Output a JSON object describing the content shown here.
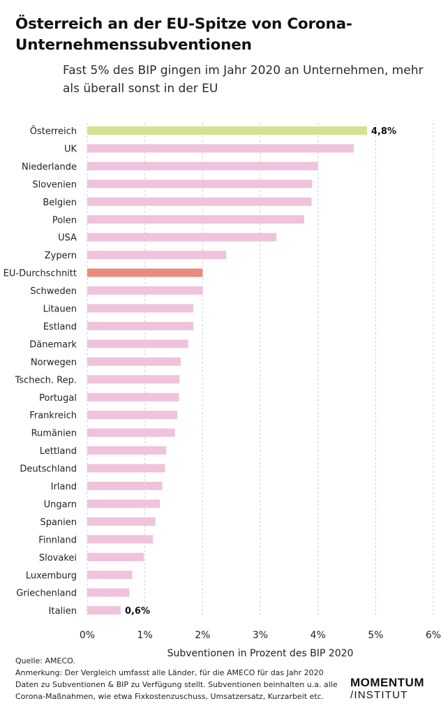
{
  "title": "Österreich an der EU-Spitze von Corona-Unternehmenssubventionen",
  "subtitle": "Fast 5% des BIP gingen im Jahr 2020 an Unternehmen, mehr als überall sonst in der EU",
  "source": "Quelle: AMECO.",
  "note": "Anmerkung: Der Vergleich umfasst alle Länder, für die AMECO für das Jahr 2020 Daten zu Subventionen & BIP zu Verfügung stellt. Subventionen beinhalten u.a. alle Corona-Maßnahmen, wie etwa Fixkostenzuschuss, Umsatzersatz, Kurzarbeit etc.",
  "logo": {
    "line1": "MOMENTUM",
    "line2": "/INSTITUT"
  },
  "colors": {
    "default": "#efc3dc",
    "highlight": "#d3e394",
    "average": "#ea8b7b",
    "grid": "#cfcfcf"
  },
  "chart_data": {
    "type": "bar",
    "orientation": "horizontal",
    "xlabel": "Subventionen in Prozent des BIP 2020",
    "xlim": [
      0,
      6
    ],
    "xticks": [
      0,
      1,
      2,
      3,
      4,
      5,
      6
    ],
    "xtick_labels": [
      "0%",
      "1%",
      "2%",
      "3%",
      "4%",
      "5%",
      "6%"
    ],
    "categories": [
      "Österreich",
      "UK",
      "Niederlande",
      "Slovenien",
      "Belgien",
      "Polen",
      "USA",
      "Zypern",
      "EU-Durchschnitt",
      "Schweden",
      "Litauen",
      "Estland",
      "Dänemark",
      "Norwegen",
      "Tschech. Rep.",
      "Portugal",
      "Frankreich",
      "Rumänien",
      "Lettland",
      "Deutschland",
      "Irland",
      "Ungarn",
      "Spanien",
      "Finnland",
      "Slovakei",
      "Luxemburg",
      "Griechenland",
      "Italien"
    ],
    "values": [
      4.85,
      4.62,
      4.0,
      3.9,
      3.89,
      3.76,
      3.28,
      2.41,
      2.0,
      2.0,
      1.84,
      1.84,
      1.75,
      1.62,
      1.6,
      1.59,
      1.56,
      1.52,
      1.37,
      1.35,
      1.3,
      1.26,
      1.18,
      1.14,
      0.98,
      0.78,
      0.73,
      0.58
    ],
    "data_labels": {
      "Österreich": "4,8%",
      "Italien": "0,6%"
    },
    "highlight": "Österreich",
    "average": "EU-Durchschnitt"
  }
}
